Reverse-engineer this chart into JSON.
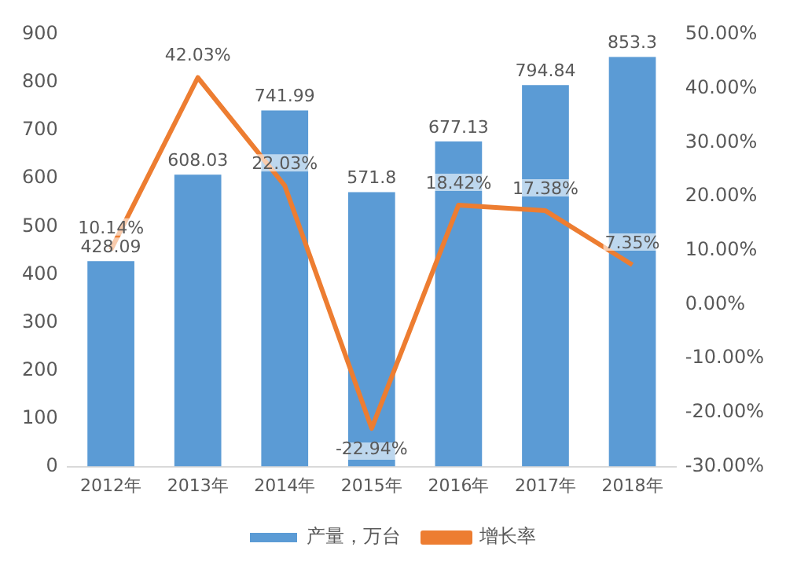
{
  "chart_data": {
    "type": "bar",
    "categories": [
      "2012年",
      "2013年",
      "2014年",
      "2015年",
      "2016年",
      "2017年",
      "2018年"
    ],
    "series": [
      {
        "name": "产量，万台",
        "color": "#5b9bd5",
        "values": [
          428.09,
          608.03,
          741.99,
          571.8,
          677.13,
          794.84,
          853.3
        ],
        "value_labels": [
          "428.09",
          "608.03",
          "741.99",
          "571.8",
          "677.13",
          "794.84",
          "853.3"
        ]
      },
      {
        "name": "增长率",
        "type": "line",
        "axis": "y2",
        "color": "#ed7d31",
        "values": [
          10.14,
          42.03,
          22.03,
          -22.94,
          18.42,
          17.38,
          7.35
        ],
        "value_labels": [
          "10.14%",
          "42.03%",
          "22.03%",
          "-22.94%",
          "18.42%",
          "17.38%",
          "7.35%"
        ]
      }
    ],
    "ylim": [
      0,
      900
    ],
    "yticks": [
      0,
      100,
      200,
      300,
      400,
      500,
      600,
      700,
      800,
      900
    ],
    "y2lim": [
      -30,
      50
    ],
    "y2ticks": [
      {
        "value": -30,
        "label": "-30.00%"
      },
      {
        "value": -20,
        "label": "-20.00%"
      },
      {
        "value": -10,
        "label": "-10.00%"
      },
      {
        "value": 0,
        "label": "0.00%"
      },
      {
        "value": 10,
        "label": "10.00%"
      },
      {
        "value": 20,
        "label": "20.00%"
      },
      {
        "value": 30,
        "label": "30.00%"
      },
      {
        "value": 40,
        "label": "40.00%"
      },
      {
        "value": 50,
        "label": "50.00%"
      }
    ],
    "legend": "bottom",
    "grid": false,
    "marker": "none",
    "line_style": "solid"
  }
}
